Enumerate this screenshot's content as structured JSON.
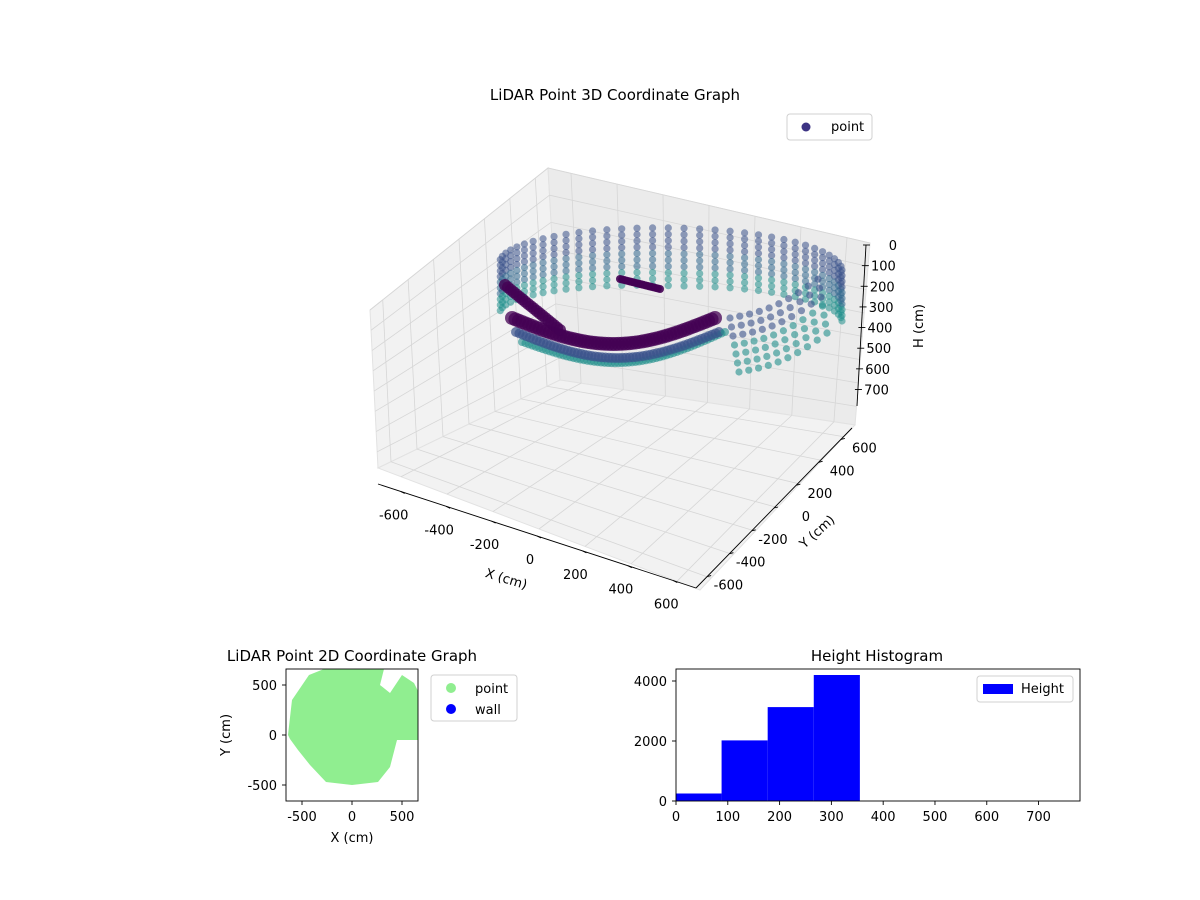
{
  "colors": {
    "point3d_dark": "#440154",
    "point3d_mid": "#3b528b",
    "point3d_teal": "#21908c",
    "legend3d_marker": "#3d3484",
    "point2d": "#90ee90",
    "wall": "#0000ff",
    "histogram": "#0000ff"
  },
  "chart_data": [
    {
      "type": "scatter",
      "projection": "3d",
      "title": "LiDAR Point 3D Coordinate Graph",
      "xlabel": "X (cm)",
      "ylabel": "Y (cm)",
      "zlabel": "H (cm)",
      "xticks": [
        -600,
        -400,
        -200,
        0,
        200,
        400,
        600
      ],
      "yticks": [
        -600,
        -400,
        -200,
        0,
        200,
        400,
        600
      ],
      "zticks": [
        0,
        100,
        200,
        300,
        400,
        500,
        600,
        700
      ],
      "xlim": [
        -700,
        700
      ],
      "ylim": [
        -700,
        700
      ],
      "zlim": [
        0,
        780
      ],
      "z_inverted": true,
      "grid": true,
      "legend": {
        "location": "top-right",
        "entries": [
          "point"
        ]
      },
      "series": [
        {
          "name": "point",
          "colormap": "viridis"
        }
      ]
    },
    {
      "type": "scatter",
      "title": "LiDAR Point 2D Coordinate Graph",
      "xlabel": "X (cm)",
      "ylabel": "Y (cm)",
      "xticks": [
        -500,
        0,
        500
      ],
      "yticks": [
        -500,
        0,
        500
      ],
      "xlim": [
        -660,
        660
      ],
      "ylim": [
        -660,
        660
      ],
      "grid": false,
      "legend": {
        "location": "outside-right",
        "entries": [
          "point",
          "wall"
        ]
      },
      "series": [
        {
          "name": "point",
          "color": "#90ee90"
        },
        {
          "name": "wall",
          "color": "#0000ff",
          "points": []
        }
      ]
    },
    {
      "type": "bar",
      "title": "Height Histogram",
      "xlabel": "",
      "ylabel": "",
      "xticks": [
        0,
        100,
        200,
        300,
        400,
        500,
        600,
        700
      ],
      "yticks": [
        0,
        2000,
        4000
      ],
      "xlim": [
        0,
        780
      ],
      "ylim": [
        0,
        4400
      ],
      "grid": false,
      "legend": {
        "location": "top-right",
        "entries": [
          "Height"
        ]
      },
      "bins": [
        {
          "x0": 0,
          "x1": 88,
          "count": 250
        },
        {
          "x0": 88,
          "x1": 177,
          "count": 2020
        },
        {
          "x0": 177,
          "x1": 266,
          "count": 3130
        },
        {
          "x0": 266,
          "x1": 355,
          "count": 4200
        }
      ],
      "series": [
        {
          "name": "Height",
          "color": "#0000ff"
        }
      ]
    }
  ]
}
